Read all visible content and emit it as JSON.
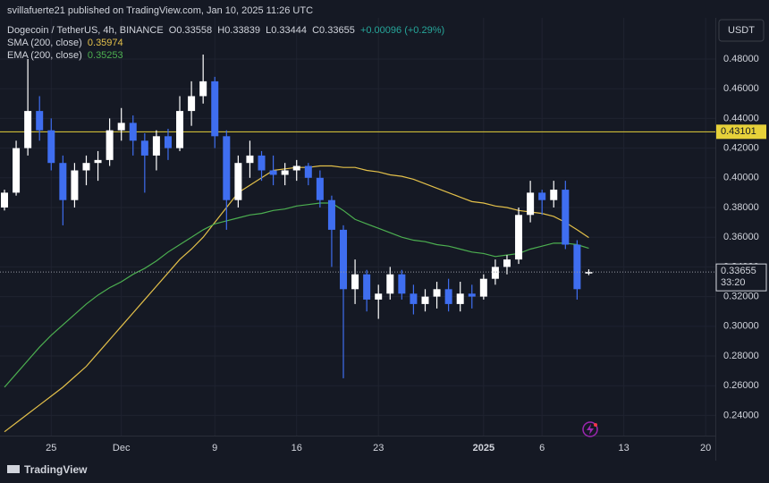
{
  "chart_data": {
    "type": "candlestick",
    "attribution": "svillafuerte21 published on TradingView.com, Jan 10, 2025 11:26 UTC",
    "title": "Dogecoin / TetherUS, 4h, BINANCE",
    "ohlc_readout": [
      "O0.33558",
      "H0.33839",
      "L0.33444",
      "C0.33655",
      "+0.00096 (+0.29%)"
    ],
    "currency": "USDT",
    "brand": "TradingView",
    "xlim": [
      0.23,
      61.06
    ],
    "xticks": [
      {
        "value": 4,
        "label": "25"
      },
      {
        "value": 10,
        "label": "Dec"
      },
      {
        "value": 18,
        "label": "9"
      },
      {
        "value": 25,
        "label": "16"
      },
      {
        "value": 32,
        "label": "23"
      },
      {
        "value": 41,
        "label": "2025"
      },
      {
        "value": 46,
        "label": "6"
      },
      {
        "value": 53,
        "label": "13"
      },
      {
        "value": 60,
        "label": "20"
      }
    ],
    "ylim": [
      0.2264,
      0.5077
    ],
    "yticks": [
      {
        "value": 0.24,
        "label": "0.24000"
      },
      {
        "value": 0.26,
        "label": "0.26000"
      },
      {
        "value": 0.28,
        "label": "0.28000"
      },
      {
        "value": 0.3,
        "label": "0.30000"
      },
      {
        "value": 0.32,
        "label": "0.32000"
      },
      {
        "value": 0.34,
        "label": "0.34000"
      },
      {
        "value": 0.36,
        "label": "0.36000"
      },
      {
        "value": 0.38,
        "label": "0.38000"
      },
      {
        "value": 0.4,
        "label": "0.40000"
      },
      {
        "value": 0.42,
        "label": "0.42000"
      },
      {
        "value": 0.44,
        "label": "0.44000"
      },
      {
        "value": 0.46,
        "label": "0.46000"
      },
      {
        "value": 0.48,
        "label": "0.48000"
      }
    ],
    "grid": true,
    "up_color": "#ffffff",
    "down_color": "#3f6ef0",
    "open": [
      0.38,
      0.39,
      0.42,
      0.445,
      0.432,
      0.41,
      0.385,
      0.405,
      0.41,
      0.412,
      0.432,
      0.437,
      0.425,
      0.415,
      0.428,
      0.42,
      0.445,
      0.455,
      0.465,
      0.428,
      0.385,
      0.41,
      0.415,
      0.405,
      0.402,
      0.405,
      0.408,
      0.4,
      0.385,
      0.365,
      0.325,
      0.335,
      0.318,
      0.322,
      0.335,
      0.322,
      0.315,
      0.32,
      0.325,
      0.315,
      0.322,
      0.32,
      0.332,
      0.34,
      0.345,
      0.375,
      0.39,
      0.385,
      0.392,
      0.355,
      0.33558
    ],
    "high": [
      0.392,
      0.425,
      0.48,
      0.455,
      0.44,
      0.415,
      0.41,
      0.415,
      0.418,
      0.44,
      0.447,
      0.442,
      0.43,
      0.432,
      0.433,
      0.455,
      0.465,
      0.483,
      0.468,
      0.432,
      0.415,
      0.425,
      0.418,
      0.415,
      0.41,
      0.412,
      0.41,
      0.405,
      0.388,
      0.368,
      0.345,
      0.338,
      0.328,
      0.34,
      0.338,
      0.328,
      0.325,
      0.33,
      0.332,
      0.33,
      0.328,
      0.335,
      0.345,
      0.348,
      0.38,
      0.398,
      0.392,
      0.398,
      0.398,
      0.358,
      0.33839
    ],
    "low": [
      0.378,
      0.388,
      0.415,
      0.425,
      0.405,
      0.368,
      0.38,
      0.395,
      0.398,
      0.408,
      0.425,
      0.415,
      0.39,
      0.405,
      0.412,
      0.418,
      0.435,
      0.45,
      0.42,
      0.365,
      0.38,
      0.4,
      0.398,
      0.395,
      0.395,
      0.398,
      0.395,
      0.38,
      0.34,
      0.265,
      0.315,
      0.31,
      0.305,
      0.318,
      0.318,
      0.308,
      0.31,
      0.312,
      0.31,
      0.31,
      0.312,
      0.318,
      0.328,
      0.335,
      0.342,
      0.37,
      0.375,
      0.38,
      0.352,
      0.318,
      0.33444
    ],
    "close": [
      0.39,
      0.42,
      0.445,
      0.432,
      0.41,
      0.385,
      0.405,
      0.41,
      0.412,
      0.432,
      0.437,
      0.425,
      0.415,
      0.428,
      0.42,
      0.445,
      0.455,
      0.465,
      0.428,
      0.385,
      0.41,
      0.415,
      0.405,
      0.402,
      0.405,
      0.408,
      0.4,
      0.385,
      0.365,
      0.325,
      0.335,
      0.318,
      0.322,
      0.335,
      0.322,
      0.315,
      0.32,
      0.325,
      0.315,
      0.322,
      0.32,
      0.332,
      0.34,
      0.345,
      0.375,
      0.39,
      0.385,
      0.392,
      0.355,
      0.325,
      0.33655
    ],
    "series": [
      {
        "name": "SMA (200, close)",
        "color": "#e3c04a",
        "last_value": 0.35974,
        "values": [
          0.229,
          0.235,
          0.241,
          0.247,
          0.253,
          0.259,
          0.266,
          0.273,
          0.282,
          0.291,
          0.3,
          0.309,
          0.318,
          0.327,
          0.336,
          0.345,
          0.352,
          0.36,
          0.37,
          0.38,
          0.39,
          0.395,
          0.4,
          0.405,
          0.406,
          0.407,
          0.407,
          0.408,
          0.408,
          0.407,
          0.407,
          0.405,
          0.404,
          0.402,
          0.401,
          0.399,
          0.396,
          0.393,
          0.39,
          0.387,
          0.384,
          0.383,
          0.381,
          0.38,
          0.378,
          0.377,
          0.376,
          0.374,
          0.37,
          0.365,
          0.35974
        ]
      },
      {
        "name": "EMA (200, close)",
        "color": "#4caf50",
        "last_value": 0.35253,
        "values": [
          0.259,
          0.268,
          0.277,
          0.286,
          0.294,
          0.301,
          0.308,
          0.315,
          0.321,
          0.326,
          0.33,
          0.335,
          0.339,
          0.344,
          0.35,
          0.355,
          0.36,
          0.365,
          0.369,
          0.371,
          0.373,
          0.375,
          0.376,
          0.378,
          0.379,
          0.381,
          0.382,
          0.383,
          0.383,
          0.378,
          0.372,
          0.369,
          0.366,
          0.363,
          0.36,
          0.358,
          0.357,
          0.355,
          0.354,
          0.352,
          0.35,
          0.349,
          0.347,
          0.348,
          0.349,
          0.352,
          0.354,
          0.356,
          0.356,
          0.355,
          0.35253
        ]
      }
    ],
    "level": {
      "value": 0.43101,
      "label": "0.43101",
      "color": "#e6d13a"
    },
    "last_price": {
      "value": 0.33655,
      "label": "0.33655",
      "countdown": "33:20"
    }
  }
}
